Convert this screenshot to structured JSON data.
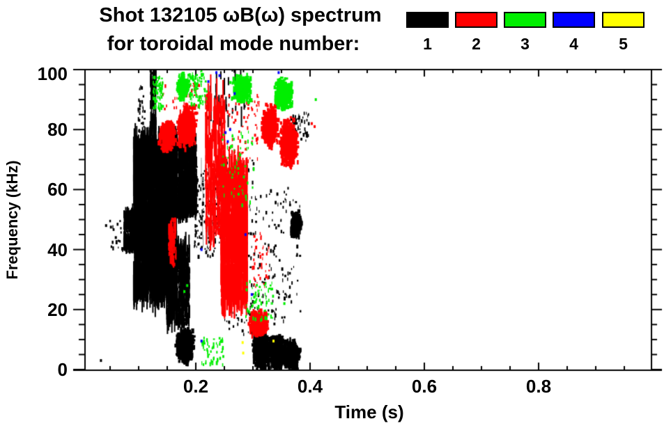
{
  "title": {
    "line1": "Shot 132105 ωB(ω) spectrum",
    "line2": "for toroidal mode number:"
  },
  "legend": {
    "entries": [
      {
        "label": "1",
        "color": "#000000"
      },
      {
        "label": "2",
        "color": "#ff0000"
      },
      {
        "label": "3",
        "color": "#00ee00"
      },
      {
        "label": "4",
        "color": "#0000ff"
      },
      {
        "label": "5",
        "color": "#ffff00"
      }
    ]
  },
  "chart_data": {
    "type": "scatter",
    "title": "Shot 132105 ωB(ω) spectrum for toroidal mode number: 1-5",
    "xlabel": "Time (s)",
    "ylabel": "Frequency (kHz)",
    "xlim": [
      0,
      1
    ],
    "ylim": [
      0,
      100
    ],
    "grid": false,
    "legend_position": "top-right",
    "xticks": {
      "major": [
        0.2,
        0.4,
        0.6,
        0.8
      ],
      "minor_step": 0.05,
      "labels": [
        "0.2",
        "0.4",
        "0.6",
        "0.8"
      ]
    },
    "yticks": {
      "major": [
        0,
        20,
        40,
        60,
        80,
        100
      ],
      "minor_step": 5,
      "labels": [
        "0",
        "20",
        "40",
        "60",
        "80",
        "100"
      ]
    },
    "series": [
      {
        "name": "1",
        "color": "#000000",
        "clusters": [
          {
            "style": "streaks",
            "t": [
              0.073,
              0.103
            ],
            "f": [
              40,
              53
            ],
            "n": 500
          },
          {
            "style": "streaks",
            "t": [
              0.09,
              0.165
            ],
            "f": [
              24,
              76
            ],
            "n": 2400
          },
          {
            "style": "streaks",
            "t": [
              0.15,
              0.2
            ],
            "f": [
              52,
              78
            ],
            "n": 1100
          },
          {
            "style": "streaks",
            "t": [
              0.148,
              0.188
            ],
            "f": [
              15,
              42
            ],
            "n": 550
          },
          {
            "style": "streaks",
            "t": [
              0.119,
              0.129
            ],
            "f": [
              72,
              101
            ],
            "n": 130
          },
          {
            "style": "speckle",
            "t": [
              0.098,
              0.109
            ],
            "f": [
              72,
              95
            ],
            "n": 45
          },
          {
            "style": "blob",
            "t": [
              0.162,
              0.197
            ],
            "f": [
              2,
              15
            ],
            "n": 800
          },
          {
            "style": "speckle",
            "t": [
              0.196,
              0.246
            ],
            "f": [
              38,
              68
            ],
            "n": 170
          },
          {
            "style": "faint",
            "t": [
              0.203,
              0.252
            ],
            "f": [
              40,
              66
            ],
            "n": 22
          },
          {
            "style": "speckle",
            "t": [
              0.247,
              0.3
            ],
            "f": [
              12,
              70
            ],
            "n": 160
          },
          {
            "style": "blob",
            "t": [
              0.296,
              0.33
            ],
            "f": [
              0,
              14
            ],
            "n": 1000
          },
          {
            "style": "blob",
            "t": [
              0.325,
              0.355
            ],
            "f": [
              0,
              13
            ],
            "n": 900
          },
          {
            "style": "blob",
            "t": [
              0.35,
              0.382
            ],
            "f": [
              0,
              11
            ],
            "n": 700
          },
          {
            "style": "blob",
            "t": [
              0.362,
              0.384
            ],
            "f": [
              44,
              54
            ],
            "n": 240
          },
          {
            "style": "speckle",
            "t": [
              0.3,
              0.382
            ],
            "f": [
              15,
              62
            ],
            "n": 120
          },
          {
            "style": "speckle",
            "t": [
              0.365,
              0.397
            ],
            "f": [
              76,
              86
            ],
            "n": 55
          },
          {
            "style": "streaks",
            "t": [
              0.218,
              0.29
            ],
            "f": [
              82,
              101
            ],
            "n": 45
          },
          {
            "style": "speckle",
            "t": [
              0.048,
              0.075
            ],
            "f": [
              40,
              50
            ],
            "n": 18
          },
          {
            "style": "points",
            "points": [
              [
                0.034,
                3
              ],
              [
                0.043,
                48
              ],
              [
                0.06,
                44
              ]
            ]
          }
        ]
      },
      {
        "name": "2",
        "color": "#ff0000",
        "clusters": [
          {
            "style": "blob",
            "t": [
              0.132,
              0.163
            ],
            "f": [
              72,
              85
            ],
            "n": 450
          },
          {
            "style": "blob",
            "t": [
              0.162,
              0.202
            ],
            "f": [
              73,
              90
            ],
            "n": 600
          },
          {
            "style": "streaks",
            "t": [
              0.151,
              0.164
            ],
            "f": [
              35,
              50
            ],
            "n": 90
          },
          {
            "style": "streaks",
            "t": [
              0.216,
              0.25
            ],
            "f": [
              45,
              91
            ],
            "n": 300
          },
          {
            "style": "streaks",
            "t": [
              0.243,
              0.289
            ],
            "f": [
              22,
              68
            ],
            "n": 1200
          },
          {
            "style": "blob",
            "t": [
              0.288,
              0.327
            ],
            "f": [
              11,
              21
            ],
            "n": 450
          },
          {
            "style": "blob",
            "t": [
              0.311,
              0.343
            ],
            "f": [
              73,
              90
            ],
            "n": 600
          },
          {
            "style": "blob",
            "t": [
              0.342,
              0.379
            ],
            "f": [
              67,
              85
            ],
            "n": 650
          },
          {
            "style": "speckle",
            "t": [
              0.25,
              0.31
            ],
            "f": [
              68,
              92
            ],
            "n": 70
          },
          {
            "style": "speckle",
            "t": [
              0.298,
              0.327
            ],
            "f": [
              28,
              46
            ],
            "n": 40
          },
          {
            "style": "speckle",
            "t": [
              0.14,
              0.205
            ],
            "f": [
              87,
              96
            ],
            "n": 35
          },
          {
            "style": "points",
            "points": [
              [
                0.403,
                82
              ],
              [
                0.408,
                81
              ],
              [
                0.345,
                95
              ]
            ]
          }
        ]
      },
      {
        "name": "3",
        "color": "#00ee00",
        "clusters": [
          {
            "style": "speckle",
            "t": [
              0.124,
              0.141
            ],
            "f": [
              87,
              98
            ],
            "n": 70
          },
          {
            "style": "blob",
            "t": [
              0.163,
              0.187
            ],
            "f": [
              90,
              100
            ],
            "n": 160
          },
          {
            "style": "speckle",
            "t": [
              0.185,
              0.218
            ],
            "f": [
              88,
              100
            ],
            "n": 90
          },
          {
            "style": "blob",
            "t": [
              0.258,
              0.299
            ],
            "f": [
              89,
              100
            ],
            "n": 380
          },
          {
            "style": "blob",
            "t": [
              0.332,
              0.371
            ],
            "f": [
              86,
              99
            ],
            "n": 380
          },
          {
            "style": "speckle",
            "t": [
              0.285,
              0.335
            ],
            "f": [
              17,
              30
            ],
            "n": 70
          },
          {
            "style": "speckle",
            "t": [
              0.208,
              0.247
            ],
            "f": [
              2,
              11
            ],
            "n": 55
          },
          {
            "style": "speckle",
            "t": [
              0.243,
              0.3
            ],
            "f": [
              55,
              80
            ],
            "n": 55
          },
          {
            "style": "points",
            "points": [
              [
                0.18,
                26
              ],
              [
                0.185,
                28
              ],
              [
                0.41,
                90
              ],
              [
                0.355,
                22
              ]
            ]
          }
        ]
      },
      {
        "name": "4",
        "color": "#0000ff",
        "clusters": [
          {
            "style": "points",
            "points": [
              [
                0.236,
                99
              ],
              [
                0.222,
                96
              ],
              [
                0.2415,
                98
              ],
              [
                0.252,
                79
              ],
              [
                0.26,
                80
              ],
              [
                0.256,
                76
              ],
              [
                0.21,
                40
              ],
              [
                0.287,
                45
              ],
              [
                0.298,
                25
              ],
              [
                0.21,
                9.5
              ],
              [
                0.345,
                99
              ],
              [
                0.268,
                92
              ]
            ]
          }
        ]
      },
      {
        "name": "5",
        "color": "#ffff00",
        "clusters": [
          {
            "style": "points",
            "points": [
              [
                0.282,
                9
              ],
              [
                0.283,
                5.5
              ],
              [
                0.336,
                9.5
              ]
            ]
          }
        ]
      }
    ]
  }
}
